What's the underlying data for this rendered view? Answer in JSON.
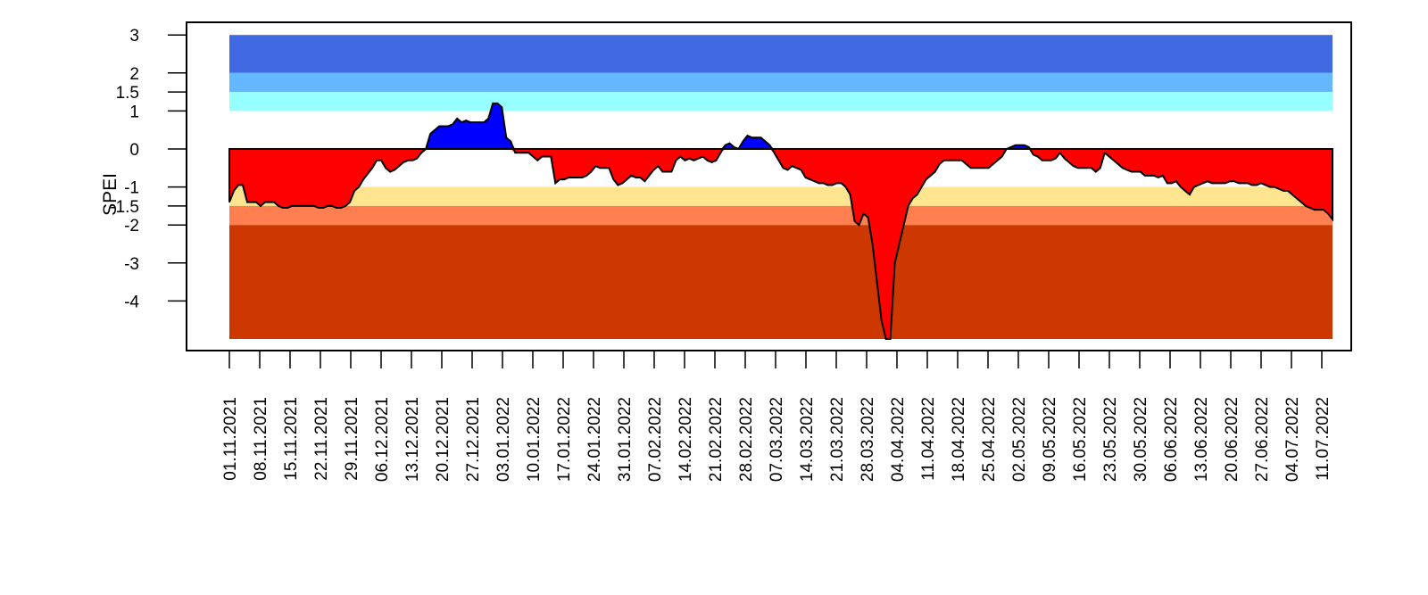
{
  "chart_data": {
    "type": "area",
    "ylabel": "SPEI",
    "ylim": [
      -5,
      3
    ],
    "y_ticks": [
      {
        "value": 3,
        "label": "3"
      },
      {
        "value": 2,
        "label": "2"
      },
      {
        "value": 1.5,
        "label": "1.5"
      },
      {
        "value": 1,
        "label": "1"
      },
      {
        "value": 0,
        "label": "0"
      },
      {
        "value": -1,
        "label": "-1"
      },
      {
        "value": -1.5,
        "label": "-1.5"
      },
      {
        "value": -2,
        "label": "-2"
      },
      {
        "value": -3,
        "label": "-3"
      },
      {
        "value": -4,
        "label": "-4"
      }
    ],
    "x_tick_labels": [
      "01.11.2021",
      "08.11.2021",
      "15.11.2021",
      "22.11.2021",
      "29.11.2021",
      "06.12.2021",
      "13.12.2021",
      "20.12.2021",
      "27.12.2021",
      "03.01.2022",
      "10.01.2022",
      "17.01.2022",
      "24.01.2022",
      "31.01.2022",
      "07.02.2022",
      "14.02.2022",
      "21.02.2022",
      "28.02.2022",
      "07.03.2022",
      "14.03.2022",
      "21.03.2022",
      "28.03.2022",
      "04.04.2022",
      "11.04.2022",
      "18.04.2022",
      "25.04.2022",
      "02.05.2022",
      "09.05.2022",
      "16.05.2022",
      "23.05.2022",
      "30.05.2022",
      "06.06.2022",
      "13.06.2022",
      "20.06.2022",
      "27.06.2022",
      "04.07.2022",
      "11.07.2022"
    ],
    "x_start": "01.11.2021",
    "x_end": "13.07.2022",
    "bands": [
      {
        "from": 2,
        "to": 3,
        "color": "#4169E1"
      },
      {
        "from": 1.5,
        "to": 2,
        "color": "#63B8FF"
      },
      {
        "from": 1,
        "to": 1.5,
        "color": "#97FFFF"
      },
      {
        "from": -1.5,
        "to": -1,
        "color": "#FFE58F"
      },
      {
        "from": -2,
        "to": -1.5,
        "color": "#FF7F50"
      },
      {
        "from": -5,
        "to": -2,
        "color": "#CD3700"
      }
    ],
    "positive_color": "#0000FF",
    "negative_color": "#FF0000",
    "series": [
      {
        "values": [
          -1.4,
          -1.1,
          -0.95,
          -0.95,
          -1.4,
          -1.4,
          -1.4,
          -1.5,
          -1.4,
          -1.4,
          -1.4,
          -1.5,
          -1.55,
          -1.55,
          -1.5,
          -1.5,
          -1.5,
          -1.5,
          -1.5,
          -1.5,
          -1.55,
          -1.55,
          -1.5,
          -1.5,
          -1.55,
          -1.55,
          -1.5,
          -1.4,
          -1.1,
          -1.0,
          -0.8,
          -0.65,
          -0.5,
          -0.3,
          -0.3,
          -0.5,
          -0.6,
          -0.55,
          -0.45,
          -0.35,
          -0.3,
          -0.3,
          -0.25,
          -0.1,
          0.0,
          0.4,
          0.5,
          0.6,
          0.6,
          0.6,
          0.65,
          0.8,
          0.7,
          0.75,
          0.7,
          0.7,
          0.7,
          0.7,
          0.8,
          1.2,
          1.2,
          1.1,
          0.3,
          0.2,
          -0.1,
          -0.1,
          -0.1,
          -0.1,
          -0.2,
          -0.3,
          -0.2,
          -0.2,
          -0.2,
          -0.9,
          -0.8,
          -0.8,
          -0.75,
          -0.75,
          -0.75,
          -0.75,
          -0.7,
          -0.6,
          -0.45,
          -0.5,
          -0.5,
          -0.5,
          -0.8,
          -0.95,
          -0.9,
          -0.8,
          -0.7,
          -0.75,
          -0.75,
          -0.85,
          -0.7,
          -0.55,
          -0.45,
          -0.6,
          -0.6,
          -0.6,
          -0.3,
          -0.2,
          -0.3,
          -0.25,
          -0.3,
          -0.25,
          -0.2,
          -0.3,
          -0.35,
          -0.3,
          -0.1,
          0.1,
          0.15,
          0.05,
          0.0,
          0.2,
          0.35,
          0.3,
          0.3,
          0.3,
          0.2,
          0.1,
          -0.1,
          -0.3,
          -0.5,
          -0.55,
          -0.45,
          -0.5,
          -0.55,
          -0.75,
          -0.8,
          -0.85,
          -0.9,
          -0.9,
          -0.95,
          -0.95,
          -0.9,
          -0.9,
          -1.0,
          -1.2,
          -1.9,
          -2.0,
          -1.7,
          -1.8,
          -2.5,
          -3.5,
          -4.5,
          -5.0,
          -5.0,
          -3.0,
          -2.5,
          -2.0,
          -1.5,
          -1.3,
          -1.2,
          -1.0,
          -0.8,
          -0.7,
          -0.6,
          -0.4,
          -0.3,
          -0.3,
          -0.3,
          -0.3,
          -0.3,
          -0.4,
          -0.5,
          -0.5,
          -0.5,
          -0.5,
          -0.5,
          -0.4,
          -0.3,
          -0.2,
          0.0,
          0.05,
          0.1,
          0.1,
          0.1,
          0.05,
          -0.15,
          -0.2,
          -0.3,
          -0.3,
          -0.3,
          -0.25,
          -0.1,
          -0.25,
          -0.35,
          -0.45,
          -0.5,
          -0.5,
          -0.5,
          -0.5,
          -0.6,
          -0.5,
          -0.1,
          -0.2,
          -0.3,
          -0.4,
          -0.5,
          -0.55,
          -0.6,
          -0.6,
          -0.6,
          -0.7,
          -0.7,
          -0.7,
          -0.75,
          -0.7,
          -0.9,
          -0.9,
          -0.85,
          -1.0,
          -1.1,
          -1.2,
          -1.0,
          -0.95,
          -0.9,
          -0.85,
          -0.9,
          -0.9,
          -0.9,
          -0.9,
          -0.85,
          -0.85,
          -0.9,
          -0.9,
          -0.9,
          -0.95,
          -0.95,
          -0.9,
          -0.95,
          -1.0,
          -1.0,
          -1.05,
          -1.1,
          -1.1,
          -1.2,
          -1.3,
          -1.4,
          -1.5,
          -1.55,
          -1.6,
          -1.6,
          -1.6,
          -1.7,
          -1.85
        ]
      }
    ],
    "legend": "none",
    "grid": false
  }
}
